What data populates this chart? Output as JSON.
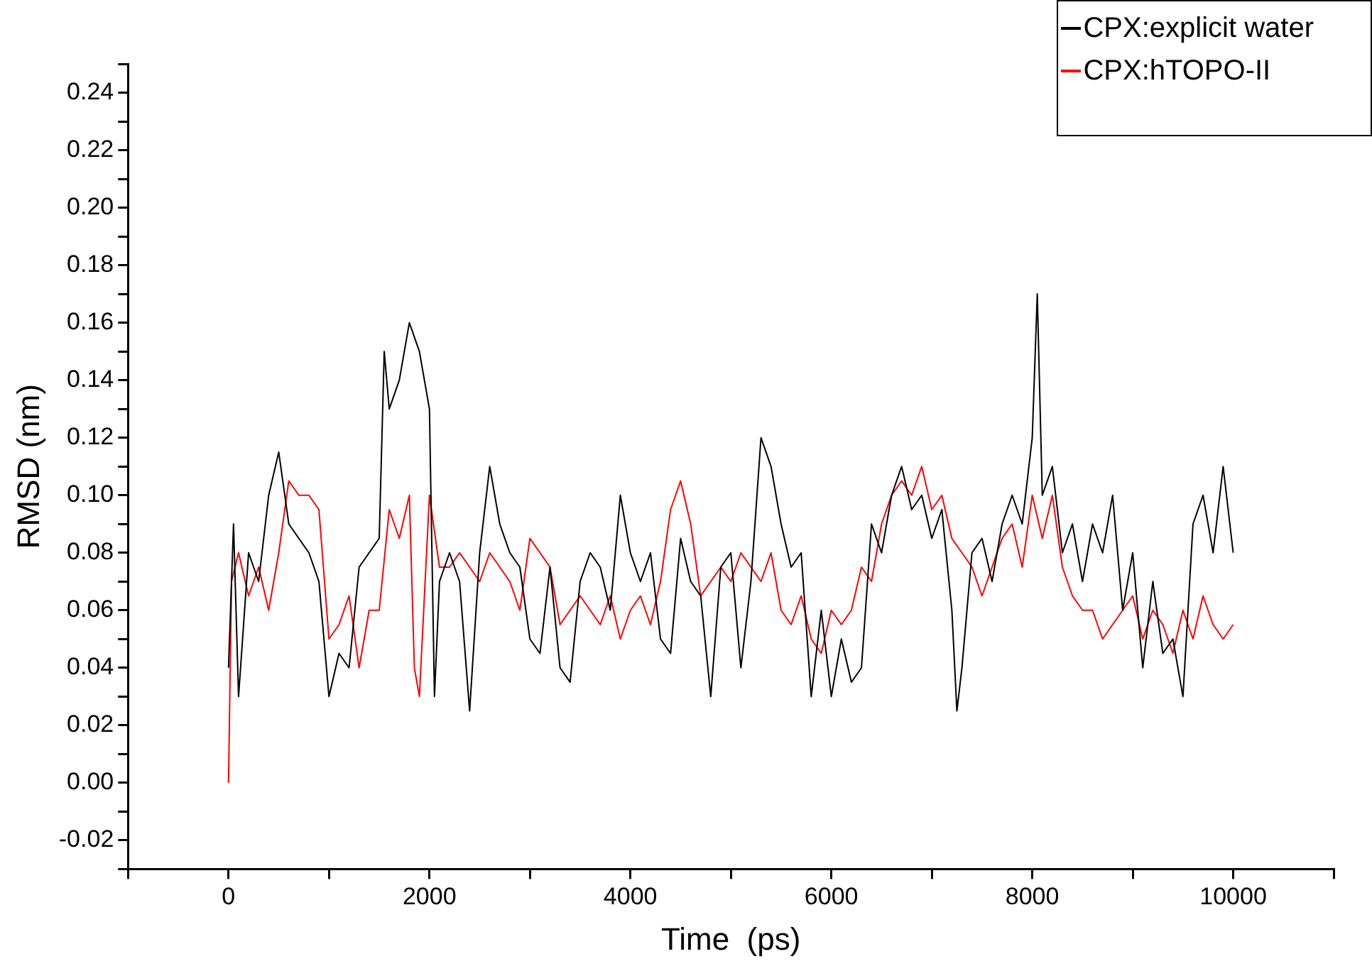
{
  "chart_data": {
    "type": "line",
    "xlabel": "Time  (ps)",
    "ylabel": "RMSD (nm)",
    "legend": "top right",
    "xlim": [
      -1000,
      11000
    ],
    "ylim": [
      -0.03,
      0.25
    ],
    "xticks": [
      {
        "value": -1000,
        "label": null
      },
      0,
      {
        "value": 1000,
        "label": null
      },
      2000,
      {
        "value": 3000,
        "label": null
      },
      4000,
      {
        "value": 5000,
        "label": null
      },
      6000,
      {
        "value": 7000,
        "label": null
      },
      8000,
      {
        "value": 9000,
        "label": null
      },
      10000,
      {
        "value": 11000,
        "label": null
      }
    ],
    "yticks": [
      {
        "value": -0.03,
        "label": null
      },
      {
        "value": -0.02,
        "label": "-0.02"
      },
      {
        "value": -0.01,
        "label": null
      },
      {
        "value": 0,
        "label": "0.00"
      },
      {
        "value": 0.01,
        "label": null
      },
      {
        "value": 0.02,
        "label": "0.02"
      },
      {
        "value": 0.03,
        "label": null
      },
      {
        "value": 0.04,
        "label": "0.04"
      },
      {
        "value": 0.05,
        "label": null
      },
      {
        "value": 0.06,
        "label": "0.06"
      },
      {
        "value": 0.07,
        "label": null
      },
      {
        "value": 0.08,
        "label": "0.08"
      },
      {
        "value": 0.09,
        "label": null
      },
      {
        "value": 0.1,
        "label": "0.10"
      },
      {
        "value": 0.11,
        "label": null
      },
      {
        "value": 0.12,
        "label": "0.12"
      },
      {
        "value": 0.13,
        "label": null
      },
      {
        "value": 0.14,
        "label": "0.14"
      },
      {
        "value": 0.15,
        "label": null
      },
      {
        "value": 0.16,
        "label": "0.16"
      },
      {
        "value": 0.17,
        "label": null
      },
      {
        "value": 0.18,
        "label": "0.18"
      },
      {
        "value": 0.19,
        "label": null
      },
      {
        "value": 0.2,
        "label": "0.20"
      },
      {
        "value": 0.21,
        "label": null
      },
      {
        "value": 0.22,
        "label": "0.22"
      },
      {
        "value": 0.23,
        "label": null
      },
      {
        "value": 0.24,
        "label": "0.24"
      },
      {
        "value": 0.25,
        "label": null
      }
    ],
    "series": [
      {
        "name": "CPX:explicit water",
        "color": "#000000",
        "x": [
          0,
          50,
          100,
          200,
          300,
          400,
          500,
          600,
          700,
          800,
          900,
          1000,
          1100,
          1200,
          1300,
          1400,
          1500,
          1550,
          1600,
          1700,
          1800,
          1900,
          2000,
          2050,
          2100,
          2200,
          2300,
          2400,
          2500,
          2600,
          2700,
          2800,
          2900,
          3000,
          3100,
          3200,
          3300,
          3400,
          3500,
          3600,
          3700,
          3800,
          3900,
          4000,
          4100,
          4200,
          4300,
          4400,
          4500,
          4600,
          4700,
          4800,
          4900,
          5000,
          5100,
          5200,
          5300,
          5400,
          5500,
          5600,
          5700,
          5800,
          5900,
          6000,
          6100,
          6200,
          6300,
          6400,
          6500,
          6600,
          6700,
          6800,
          6900,
          7000,
          7100,
          7200,
          7250,
          7300,
          7400,
          7500,
          7600,
          7700,
          7800,
          7900,
          8000,
          8050,
          8100,
          8200,
          8300,
          8400,
          8500,
          8600,
          8700,
          8800,
          8900,
          9000,
          9100,
          9200,
          9300,
          9400,
          9500,
          9600,
          9700,
          9800,
          9900,
          10000
        ],
        "values": [
          0.04,
          0.09,
          0.03,
          0.08,
          0.07,
          0.1,
          0.115,
          0.09,
          0.085,
          0.08,
          0.07,
          0.03,
          0.045,
          0.04,
          0.075,
          0.08,
          0.085,
          0.15,
          0.13,
          0.14,
          0.16,
          0.15,
          0.13,
          0.03,
          0.07,
          0.08,
          0.07,
          0.025,
          0.08,
          0.11,
          0.09,
          0.08,
          0.075,
          0.05,
          0.045,
          0.075,
          0.04,
          0.035,
          0.07,
          0.08,
          0.075,
          0.06,
          0.1,
          0.08,
          0.07,
          0.08,
          0.05,
          0.045,
          0.085,
          0.07,
          0.065,
          0.03,
          0.075,
          0.08,
          0.04,
          0.07,
          0.12,
          0.11,
          0.09,
          0.075,
          0.08,
          0.03,
          0.06,
          0.03,
          0.05,
          0.035,
          0.04,
          0.09,
          0.08,
          0.1,
          0.11,
          0.095,
          0.1,
          0.085,
          0.095,
          0.06,
          0.025,
          0.04,
          0.08,
          0.085,
          0.07,
          0.09,
          0.1,
          0.09,
          0.12,
          0.17,
          0.1,
          0.11,
          0.08,
          0.09,
          0.07,
          0.09,
          0.08,
          0.1,
          0.06,
          0.08,
          0.04,
          0.07,
          0.045,
          0.05,
          0.03,
          0.09,
          0.1,
          0.08,
          0.11,
          0.08
        ]
      },
      {
        "name": "CPX:hTOPO-II",
        "color": "#ff0000",
        "x": [
          0,
          30,
          100,
          200,
          300,
          400,
          500,
          600,
          700,
          800,
          900,
          1000,
          1100,
          1200,
          1300,
          1400,
          1500,
          1600,
          1700,
          1800,
          1850,
          1900,
          2000,
          2100,
          2200,
          2300,
          2400,
          2500,
          2600,
          2700,
          2800,
          2900,
          3000,
          3100,
          3200,
          3300,
          3400,
          3500,
          3600,
          3700,
          3800,
          3900,
          4000,
          4100,
          4200,
          4300,
          4400,
          4500,
          4600,
          4700,
          4800,
          4900,
          5000,
          5100,
          5200,
          5300,
          5400,
          5500,
          5600,
          5700,
          5800,
          5900,
          6000,
          6100,
          6200,
          6300,
          6400,
          6500,
          6600,
          6700,
          6800,
          6900,
          7000,
          7100,
          7200,
          7300,
          7400,
          7500,
          7600,
          7700,
          7800,
          7900,
          8000,
          8100,
          8200,
          8300,
          8400,
          8500,
          8600,
          8700,
          8800,
          8900,
          9000,
          9100,
          9200,
          9300,
          9400,
          9500,
          9600,
          9700,
          9800,
          9900,
          10000
        ],
        "values": [
          0,
          0.07,
          0.08,
          0.065,
          0.075,
          0.06,
          0.08,
          0.105,
          0.1,
          0.1,
          0.095,
          0.05,
          0.055,
          0.065,
          0.04,
          0.06,
          0.06,
          0.095,
          0.085,
          0.1,
          0.04,
          0.03,
          0.1,
          0.075,
          0.075,
          0.08,
          0.075,
          0.07,
          0.08,
          0.075,
          0.07,
          0.06,
          0.085,
          0.08,
          0.075,
          0.055,
          0.06,
          0.065,
          0.06,
          0.055,
          0.065,
          0.05,
          0.06,
          0.065,
          0.055,
          0.07,
          0.095,
          0.105,
          0.09,
          0.065,
          0.07,
          0.075,
          0.07,
          0.08,
          0.075,
          0.07,
          0.08,
          0.06,
          0.055,
          0.065,
          0.05,
          0.045,
          0.06,
          0.055,
          0.06,
          0.075,
          0.07,
          0.09,
          0.1,
          0.105,
          0.1,
          0.11,
          0.095,
          0.1,
          0.085,
          0.08,
          0.075,
          0.065,
          0.075,
          0.085,
          0.09,
          0.075,
          0.1,
          0.085,
          0.1,
          0.075,
          0.065,
          0.06,
          0.06,
          0.05,
          0.055,
          0.06,
          0.065,
          0.05,
          0.06,
          0.055,
          0.045,
          0.06,
          0.05,
          0.065,
          0.055,
          0.05,
          0.055
        ]
      }
    ]
  }
}
